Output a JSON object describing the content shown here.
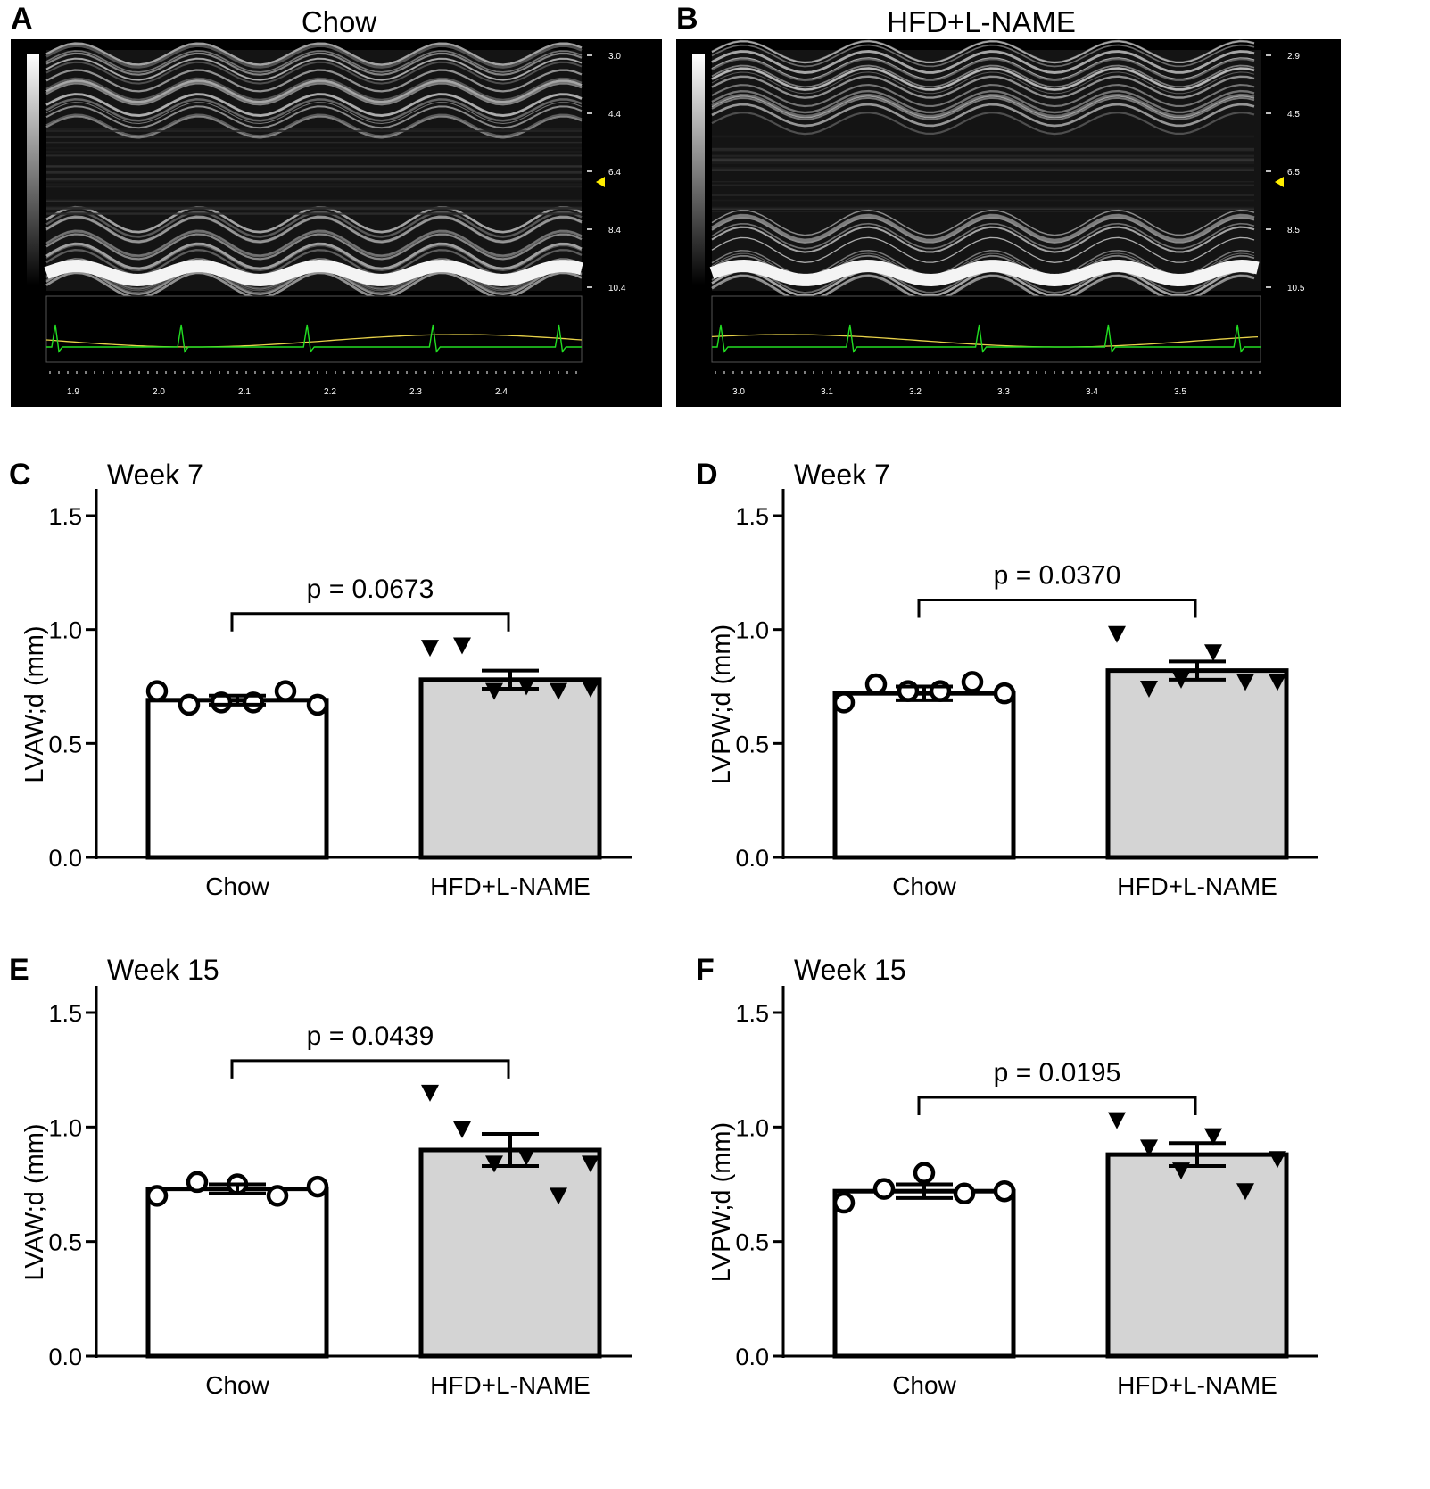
{
  "panels": {
    "A": {
      "letter": "A",
      "title": "Chow",
      "depth_ticks": [
        "3.0",
        "4.4",
        "6.4",
        "8.4",
        "10.4"
      ],
      "time_ticks": [
        "1.9",
        "2.0",
        "2.1",
        "2.2",
        "2.3",
        "2.4"
      ]
    },
    "B": {
      "letter": "B",
      "title": "HFD+L-NAME",
      "depth_ticks": [
        "2.9",
        "4.5",
        "6.5",
        "8.5",
        "10.5"
      ],
      "time_ticks": [
        "3.0",
        "3.1",
        "3.2",
        "3.3",
        "3.4",
        "3.5"
      ]
    }
  },
  "colors": {
    "chow_bar": "#ffffff",
    "hfd_bar": "#d4d4d4",
    "ecg_trace": "#22dd22",
    "resp_trace": "#e8d24a",
    "marker": "#ffee00"
  },
  "chart_data": [
    {
      "letter": "C",
      "type": "bar",
      "title": "Week 7",
      "ylabel": "LVAW;d (mm)",
      "categories": [
        "Chow",
        "HFD+L-NAME"
      ],
      "values": [
        0.69,
        0.78
      ],
      "sem": [
        0.02,
        0.04
      ],
      "points": [
        [
          0.73,
          0.67,
          0.68,
          0.68,
          0.73,
          0.67
        ],
        [
          0.92,
          0.93,
          0.73,
          0.75,
          0.73,
          0.74
        ]
      ],
      "markers": [
        "circle",
        "triangle-down"
      ],
      "ylim": [
        0.0,
        1.5
      ],
      "yticks": [
        "0.0",
        "0.5",
        "1.0",
        "1.5"
      ],
      "annotation": "p = 0.0673",
      "bracket_y": 1.07
    },
    {
      "letter": "D",
      "type": "bar",
      "title": "Week 7",
      "ylabel": "LVPW;d (mm)",
      "categories": [
        "Chow",
        "HFD+L-NAME"
      ],
      "values": [
        0.72,
        0.82
      ],
      "sem": [
        0.03,
        0.04
      ],
      "points": [
        [
          0.68,
          0.76,
          0.73,
          0.73,
          0.77,
          0.72
        ],
        [
          0.98,
          0.74,
          0.78,
          0.9,
          0.77,
          0.77
        ]
      ],
      "markers": [
        "circle",
        "triangle-down"
      ],
      "ylim": [
        0.0,
        1.5
      ],
      "yticks": [
        "0.0",
        "0.5",
        "1.0",
        "1.5"
      ],
      "annotation": "p = 0.0370",
      "bracket_y": 1.13
    },
    {
      "letter": "E",
      "type": "bar",
      "title": "Week 15",
      "ylabel": "LVAW;d (mm)",
      "categories": [
        "Chow",
        "HFD+L-NAME"
      ],
      "values": [
        0.73,
        0.9
      ],
      "sem": [
        0.02,
        0.07
      ],
      "points": [
        [
          0.7,
          0.76,
          0.75,
          0.7,
          0.74
        ],
        [
          1.15,
          0.99,
          0.84,
          0.87,
          0.7,
          0.84
        ]
      ],
      "markers": [
        "circle",
        "triangle-down"
      ],
      "ylim": [
        0.0,
        1.5
      ],
      "yticks": [
        "0.0",
        "0.5",
        "1.0",
        "1.5"
      ],
      "annotation": "p = 0.0439",
      "bracket_y": 1.29
    },
    {
      "letter": "F",
      "type": "bar",
      "title": "Week 15",
      "ylabel": "LVPW;d (mm)",
      "categories": [
        "Chow",
        "HFD+L-NAME"
      ],
      "values": [
        0.72,
        0.88
      ],
      "sem": [
        0.03,
        0.05
      ],
      "points": [
        [
          0.67,
          0.73,
          0.8,
          0.71,
          0.72
        ],
        [
          1.03,
          0.91,
          0.81,
          0.96,
          0.72,
          0.86
        ]
      ],
      "markers": [
        "circle",
        "triangle-down"
      ],
      "ylim": [
        0.0,
        1.5
      ],
      "yticks": [
        "0.0",
        "0.5",
        "1.0",
        "1.5"
      ],
      "annotation": "p = 0.0195",
      "bracket_y": 1.13
    }
  ]
}
